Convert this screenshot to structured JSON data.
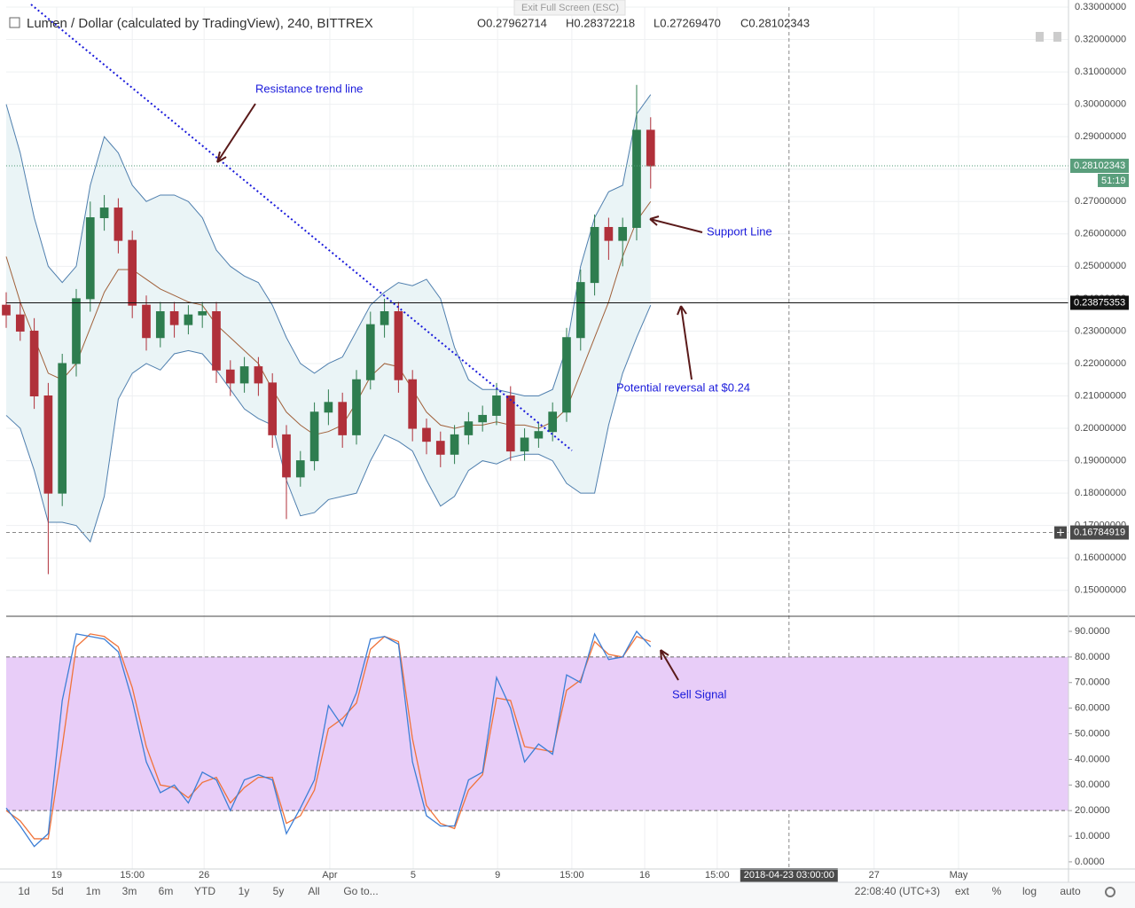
{
  "chart_data": [
    {
      "type": "candlestick",
      "title": "Lumen / Dollar (calculated by TradingView), 240, BITTREX",
      "ohlc_text": [
        "O0.27962714",
        "H0.28372218",
        "L0.27269470",
        "C0.28102343"
      ],
      "x": [
        0,
        4,
        8,
        12,
        16,
        20,
        24,
        28,
        32,
        36,
        40,
        44,
        48,
        52,
        56,
        60,
        64,
        68,
        72,
        76,
        80,
        84,
        88,
        92,
        96,
        100,
        104,
        108,
        112,
        116,
        120,
        124,
        128,
        132,
        136,
        140,
        144,
        148,
        152,
        156,
        160,
        164,
        168,
        172,
        176,
        180,
        184
      ],
      "open": [
        0.238,
        0.235,
        0.23,
        0.21,
        0.18,
        0.22,
        0.24,
        0.265,
        0.268,
        0.258,
        0.238,
        0.228,
        0.236,
        0.232,
        0.235,
        0.236,
        0.218,
        0.214,
        0.219,
        0.214,
        0.198,
        0.185,
        0.19,
        0.205,
        0.208,
        0.198,
        0.215,
        0.232,
        0.236,
        0.215,
        0.2,
        0.196,
        0.192,
        0.198,
        0.202,
        0.204,
        0.21,
        0.193,
        0.197,
        0.199,
        0.205,
        0.228,
        0.245,
        0.262,
        0.258,
        0.262,
        0.292
      ],
      "high": [
        0.242,
        0.239,
        0.234,
        0.214,
        0.223,
        0.243,
        0.27,
        0.272,
        0.271,
        0.261,
        0.241,
        0.239,
        0.239,
        0.238,
        0.239,
        0.239,
        0.221,
        0.222,
        0.222,
        0.217,
        0.201,
        0.193,
        0.208,
        0.212,
        0.211,
        0.218,
        0.236,
        0.24,
        0.239,
        0.218,
        0.203,
        0.199,
        0.201,
        0.205,
        0.207,
        0.214,
        0.213,
        0.2,
        0.202,
        0.208,
        0.231,
        0.249,
        0.266,
        0.265,
        0.265,
        0.306,
        0.296
      ],
      "low": [
        0.231,
        0.227,
        0.206,
        0.155,
        0.176,
        0.216,
        0.236,
        0.261,
        0.254,
        0.234,
        0.224,
        0.225,
        0.228,
        0.229,
        0.231,
        0.214,
        0.21,
        0.211,
        0.21,
        0.194,
        0.172,
        0.182,
        0.187,
        0.201,
        0.194,
        0.195,
        0.212,
        0.228,
        0.211,
        0.196,
        0.192,
        0.188,
        0.189,
        0.195,
        0.199,
        0.201,
        0.19,
        0.19,
        0.194,
        0.196,
        0.202,
        0.224,
        0.241,
        0.252,
        0.25,
        0.258,
        0.274
      ],
      "close": [
        0.235,
        0.23,
        0.21,
        0.18,
        0.22,
        0.24,
        0.265,
        0.268,
        0.258,
        0.238,
        0.228,
        0.236,
        0.232,
        0.235,
        0.236,
        0.218,
        0.214,
        0.219,
        0.214,
        0.198,
        0.185,
        0.19,
        0.205,
        0.208,
        0.198,
        0.215,
        0.232,
        0.236,
        0.215,
        0.2,
        0.196,
        0.192,
        0.198,
        0.202,
        0.204,
        0.21,
        0.193,
        0.197,
        0.199,
        0.205,
        0.228,
        0.245,
        0.262,
        0.258,
        0.262,
        0.292,
        0.281
      ],
      "up_color": "#2e7d4f",
      "down_color": "#b0303a",
      "upper_band": {
        "color": "#4f7fae",
        "values": [
          0.3,
          0.285,
          0.265,
          0.25,
          0.245,
          0.25,
          0.275,
          0.29,
          0.285,
          0.275,
          0.27,
          0.272,
          0.272,
          0.27,
          0.265,
          0.255,
          0.25,
          0.247,
          0.245,
          0.238,
          0.228,
          0.22,
          0.217,
          0.22,
          0.222,
          0.23,
          0.238,
          0.242,
          0.245,
          0.244,
          0.246,
          0.24,
          0.225,
          0.215,
          0.212,
          0.212,
          0.211,
          0.21,
          0.21,
          0.212,
          0.225,
          0.25,
          0.265,
          0.273,
          0.275,
          0.297,
          0.303
        ]
      },
      "middle_band": {
        "color": "#a0603a",
        "values": [
          0.253,
          0.239,
          0.228,
          0.217,
          0.215,
          0.22,
          0.231,
          0.242,
          0.249,
          0.249,
          0.246,
          0.243,
          0.241,
          0.239,
          0.238,
          0.232,
          0.228,
          0.224,
          0.22,
          0.212,
          0.205,
          0.201,
          0.198,
          0.199,
          0.201,
          0.208,
          0.216,
          0.22,
          0.219,
          0.212,
          0.205,
          0.201,
          0.2,
          0.201,
          0.201,
          0.202,
          0.201,
          0.201,
          0.2,
          0.202,
          0.206,
          0.217,
          0.228,
          0.239,
          0.253,
          0.264,
          0.27
        ]
      },
      "lower_band": {
        "color": "#4f7fae",
        "values": [
          0.204,
          0.2,
          0.187,
          0.171,
          0.171,
          0.17,
          0.165,
          0.179,
          0.209,
          0.217,
          0.22,
          0.218,
          0.223,
          0.224,
          0.223,
          0.218,
          0.212,
          0.206,
          0.203,
          0.201,
          0.184,
          0.173,
          0.174,
          0.178,
          0.179,
          0.18,
          0.19,
          0.198,
          0.196,
          0.193,
          0.184,
          0.176,
          0.179,
          0.187,
          0.19,
          0.189,
          0.191,
          0.192,
          0.192,
          0.19,
          0.183,
          0.18,
          0.18,
          0.201,
          0.217,
          0.228,
          0.238
        ]
      },
      "band_fill": "#eaf4f6",
      "xlim": [
        0,
        303.3
      ],
      "xticks": [
        {
          "value": 14.4,
          "label": "19"
        },
        {
          "value": 36,
          "label": "15:00"
        },
        {
          "value": 56.5,
          "label": "26"
        },
        {
          "value": 92.4,
          "label": "Apr"
        },
        {
          "value": 116.2,
          "label": "5"
        },
        {
          "value": 140.3,
          "label": "9"
        },
        {
          "value": 161.5,
          "label": "15:00"
        },
        {
          "value": 182.3,
          "label": "16"
        },
        {
          "value": 203,
          "label": "15:00"
        },
        {
          "value": 247.8,
          "label": "27"
        },
        {
          "value": 271.9,
          "label": "May"
        }
      ],
      "crosshair_x": {
        "value": 223.5,
        "label": "2018-04-23 03:00:00"
      },
      "ylim": [
        0.142,
        0.33
      ],
      "yticks": [
        {
          "value": 0.15,
          "label": "0.15000000"
        },
        {
          "value": 0.16,
          "label": "0.16000000"
        },
        {
          "value": 0.17,
          "label": "0.17000000"
        },
        {
          "value": 0.18,
          "label": "0.18000000"
        },
        {
          "value": 0.19,
          "label": "0.19000000"
        },
        {
          "value": 0.2,
          "label": "0.20000000"
        },
        {
          "value": 0.21,
          "label": "0.21000000"
        },
        {
          "value": 0.22,
          "label": "0.22000000"
        },
        {
          "value": 0.23,
          "label": "0.23000000"
        },
        {
          "value": 0.24,
          "label": "0.24000000"
        },
        {
          "value": 0.25,
          "label": "0.25000000"
        },
        {
          "value": 0.26,
          "label": "0.26000000"
        },
        {
          "value": 0.27,
          "label": "0.27000000"
        },
        {
          "value": 0.28,
          "label": "0.28000000"
        },
        {
          "value": 0.29,
          "label": "0.29000000"
        },
        {
          "value": 0.3,
          "label": "0.30000000"
        },
        {
          "value": 0.31,
          "label": "0.31000000"
        },
        {
          "value": 0.32,
          "label": "0.32000000"
        },
        {
          "value": 0.33,
          "label": "0.33000000"
        }
      ],
      "grid": true,
      "hlines": [
        0.23875353,
        0.16784919
      ],
      "last_price": 0.28102343,
      "countdown": "51:19",
      "annotations": [
        "Resistance trend line",
        "Support Line",
        "Potential reversal at $0.24"
      ]
    },
    {
      "type": "line",
      "x": [
        0,
        4,
        8,
        12,
        16,
        20,
        24,
        28,
        32,
        36,
        40,
        44,
        48,
        52,
        56,
        60,
        64,
        68,
        72,
        76,
        80,
        84,
        88,
        92,
        96,
        100,
        104,
        108,
        112,
        116,
        120,
        124,
        128,
        132,
        136,
        140,
        144,
        148,
        152,
        156,
        160,
        164,
        168,
        172,
        176,
        180,
        184
      ],
      "series": [
        {
          "color": "#3d7fd6",
          "values": [
            21,
            14,
            6,
            11,
            63,
            89,
            88,
            87,
            82,
            63,
            39,
            27,
            30,
            23,
            35,
            32,
            20,
            32,
            34,
            32,
            11,
            21,
            32,
            61,
            53,
            66,
            87,
            88,
            85,
            39,
            18,
            14,
            14,
            32,
            35,
            72,
            60,
            39,
            46,
            42,
            73,
            70,
            89,
            79,
            80,
            90,
            84
          ]
        },
        {
          "color": "#f0733a",
          "values": [
            20,
            16,
            9,
            9,
            45,
            84,
            89,
            88,
            84,
            68,
            45,
            30,
            29,
            25,
            31,
            33,
            23,
            29,
            33,
            33,
            15,
            18,
            28,
            52,
            56,
            62,
            83,
            88,
            86,
            48,
            22,
            15,
            13,
            28,
            34,
            64,
            63,
            45,
            44,
            43,
            67,
            71,
            86,
            81,
            80,
            88,
            86
          ]
        }
      ],
      "xlim": [
        0,
        303.3
      ],
      "ylim": [
        -2.8,
        95.2
      ],
      "yticks": [
        {
          "value": 0,
          "label": "0.0000"
        },
        {
          "value": 10,
          "label": "10.0000"
        },
        {
          "value": 20,
          "label": "20.0000"
        },
        {
          "value": 30,
          "label": "30.0000"
        },
        {
          "value": 40,
          "label": "40.0000"
        },
        {
          "value": 50,
          "label": "50.0000"
        },
        {
          "value": 60,
          "label": "60.0000"
        },
        {
          "value": 70,
          "label": "70.0000"
        },
        {
          "value": 80,
          "label": "80.0000"
        },
        {
          "value": 90,
          "label": "90.0000"
        }
      ],
      "band": [
        20,
        80
      ],
      "band_color": "#e8cdf8",
      "annotations": [
        "Sell Signal"
      ]
    }
  ],
  "ui": {
    "top_button": "Exit Full Screen (ESC)",
    "range_buttons": [
      "1d",
      "5d",
      "1m",
      "3m",
      "6m",
      "YTD",
      "1y",
      "5y",
      "All",
      "Go to..."
    ],
    "clock": "22:08:40 (UTC+3)",
    "scale_buttons": [
      "ext",
      "%",
      "log",
      "auto"
    ]
  }
}
